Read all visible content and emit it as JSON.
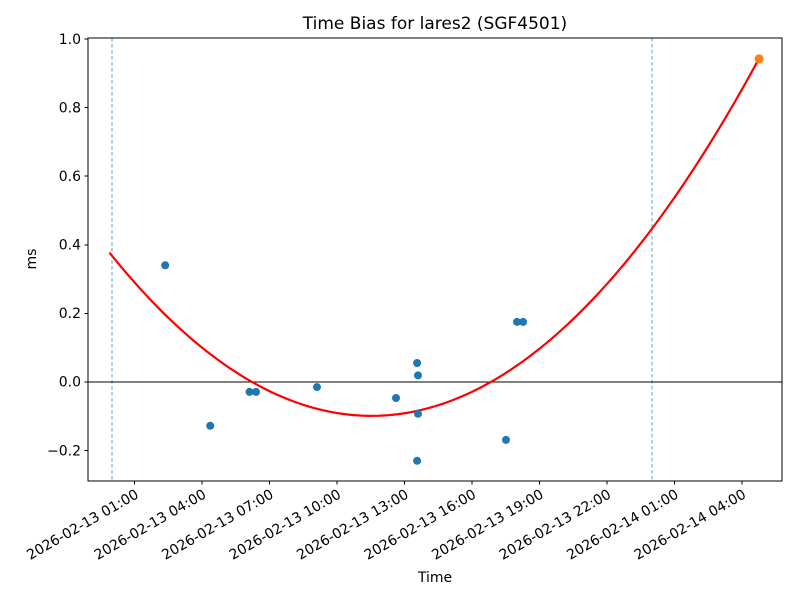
{
  "chart_data": {
    "type": "scatter",
    "title": "Time Bias for lares2 (SGF4501)",
    "xlabel": "Time",
    "ylabel": "ms",
    "x_axis": {
      "epoch": "2026-02-13 00:00",
      "lim_hours": [
        -1.07,
        29.78
      ],
      "ticks": [
        {
          "hours": 1,
          "label": "2026-02-13 01:00"
        },
        {
          "hours": 4,
          "label": "2026-02-13 04:00"
        },
        {
          "hours": 7,
          "label": "2026-02-13 07:00"
        },
        {
          "hours": 10,
          "label": "2026-02-13 10:00"
        },
        {
          "hours": 13,
          "label": "2026-02-13 13:00"
        },
        {
          "hours": 16,
          "label": "2026-02-13 16:00"
        },
        {
          "hours": 19,
          "label": "2026-02-13 19:00"
        },
        {
          "hours": 22,
          "label": "2026-02-13 22:00"
        },
        {
          "hours": 25,
          "label": "2026-02-14 01:00"
        },
        {
          "hours": 28,
          "label": "2026-02-14 04:00"
        }
      ]
    },
    "y_axis": {
      "lim": [
        -0.289,
        1.003
      ],
      "ticks": [
        {
          "value": 1.0,
          "label": "1.0"
        },
        {
          "value": 0.8,
          "label": "0.8"
        },
        {
          "value": 0.6,
          "label": "0.6"
        },
        {
          "value": 0.4,
          "label": "0.4"
        },
        {
          "value": 0.2,
          "label": "0.2"
        },
        {
          "value": 0.0,
          "label": "0.0"
        },
        {
          "value": -0.2,
          "label": "−0.2"
        }
      ]
    },
    "series": [
      {
        "name": "time-bias-observations",
        "color": "#1f77b4",
        "marker_radius": 4,
        "points": [
          {
            "hours": 2.36,
            "ms": 0.34
          },
          {
            "hours": 4.36,
            "ms": -0.128
          },
          {
            "hours": 6.11,
            "ms": -0.029
          },
          {
            "hours": 6.4,
            "ms": -0.029
          },
          {
            "hours": 9.11,
            "ms": -0.015
          },
          {
            "hours": 12.62,
            "ms": -0.047
          },
          {
            "hours": 13.56,
            "ms": 0.055
          },
          {
            "hours": 13.6,
            "ms": 0.019
          },
          {
            "hours": 13.6,
            "ms": -0.093
          },
          {
            "hours": 13.56,
            "ms": -0.23
          },
          {
            "hours": 17.51,
            "ms": -0.169
          },
          {
            "hours": 18.0,
            "ms": 0.175
          },
          {
            "hours": 18.27,
            "ms": 0.175
          }
        ]
      },
      {
        "name": "latest-observation",
        "color": "#ff7f0e",
        "marker_radius": 4.5,
        "points": [
          {
            "hours": 28.76,
            "ms": 0.942
          }
        ]
      }
    ],
    "fit_curve": {
      "model": "quadratic",
      "color": "#ff0000",
      "line_width": 2.2,
      "a_ms_per_hour2": 0.00351,
      "vertex_hours": 11.53,
      "min_ms": -0.099,
      "domain_hours": [
        -0.09,
        28.76
      ]
    },
    "vlines": {
      "color": "#5e9fc9",
      "dash": [
        3.5,
        2.5
      ],
      "line_width": 1,
      "hours": [
        0,
        24
      ]
    },
    "zero_line": {
      "color": "#000000",
      "ms": 0,
      "line_width": 1
    },
    "grid": false
  }
}
